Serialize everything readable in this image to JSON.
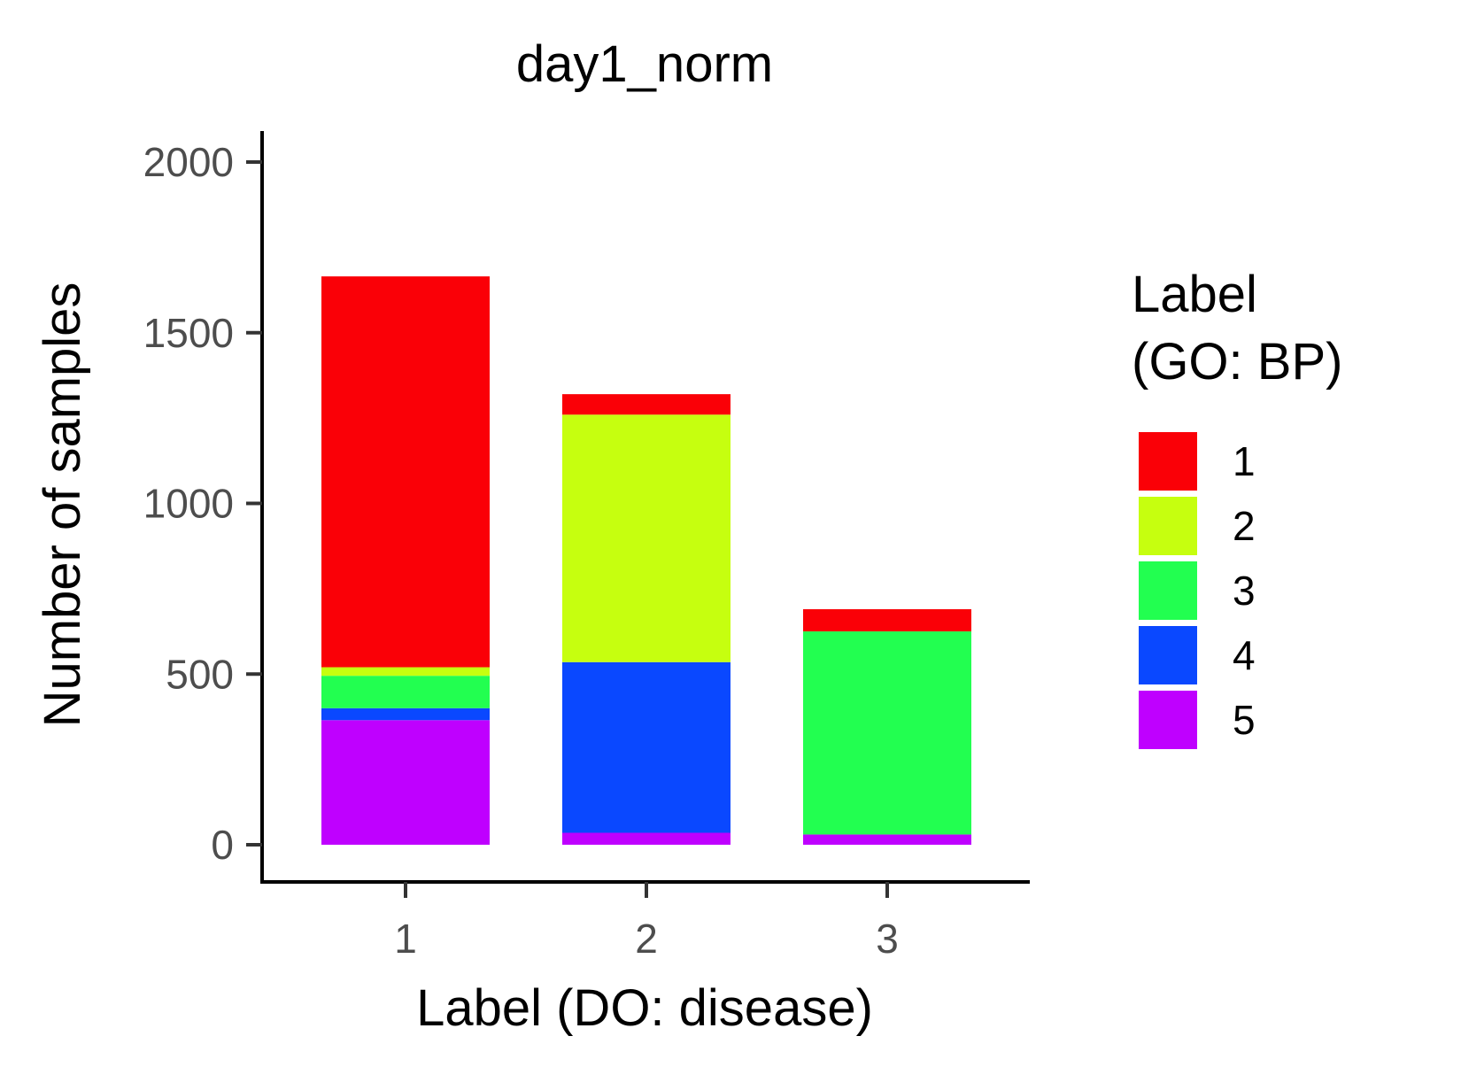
{
  "chart_data": {
    "type": "bar",
    "stacked": true,
    "title": "day1_norm",
    "xlabel": "Label (DO: disease)",
    "ylabel": "Number of samples",
    "categories": [
      "1",
      "2",
      "3"
    ],
    "ylim": [
      0,
      2100
    ],
    "yticks": [
      0,
      500,
      1000,
      1500,
      2000
    ],
    "ytick_labels": [
      "0",
      "500",
      "1000",
      "1500",
      "2000"
    ],
    "grid": false,
    "legend": {
      "title_lines": [
        "Label",
        "(GO: BP)"
      ],
      "position": "right"
    },
    "series": [
      {
        "name": "5",
        "color": "#BF00FF",
        "values": [
          365,
          35,
          30
        ]
      },
      {
        "name": "4",
        "color": "#0A48FF",
        "values": [
          35,
          500,
          0
        ]
      },
      {
        "name": "3",
        "color": "#22FF50",
        "values": [
          95,
          0,
          595
        ]
      },
      {
        "name": "2",
        "color": "#C6FF0F",
        "values": [
          25,
          725,
          0
        ]
      },
      {
        "name": "1",
        "color": "#FA0007",
        "values": [
          1145,
          60,
          65
        ]
      }
    ]
  }
}
